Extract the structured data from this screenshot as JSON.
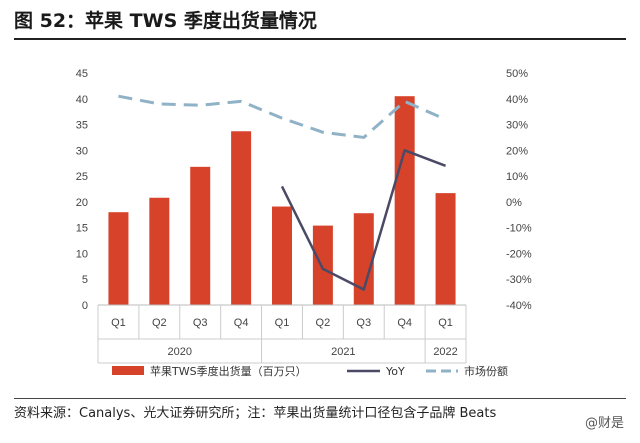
{
  "title": "图 52：苹果 TWS 季度出货量情况",
  "source": "资料来源：Canalys、光大证券研究所；注：苹果出货量统计口径包含子品牌 Beats",
  "watermark": "@财是",
  "chart_data": {
    "type": "bar",
    "categories": [
      "Q1",
      "Q2",
      "Q3",
      "Q4",
      "Q1",
      "Q2",
      "Q3",
      "Q4",
      "Q1"
    ],
    "groups": [
      {
        "label": "2020",
        "span": [
          0,
          3
        ]
      },
      {
        "label": "2021",
        "span": [
          4,
          7
        ]
      },
      {
        "label": "2022",
        "span": [
          8,
          8
        ]
      }
    ],
    "series": [
      {
        "name": "苹果TWS季度出货量（百万只）",
        "kind": "bar",
        "axis": "left",
        "color": "#d6432a",
        "values": [
          18,
          20.8,
          26.8,
          33.7,
          19.1,
          15.4,
          17.8,
          40.5,
          21.7
        ]
      },
      {
        "name": "YoY",
        "kind": "line",
        "axis": "right",
        "color": "#4a4a66",
        "values": [
          null,
          null,
          null,
          null,
          6,
          -26,
          -34,
          20,
          14
        ]
      },
      {
        "name": "市场份额",
        "kind": "dashed-line",
        "axis": "right",
        "color": "#8fb2c7",
        "values": [
          41,
          38,
          37.5,
          39,
          32.5,
          27,
          25,
          39,
          32
        ]
      }
    ],
    "y_left": {
      "min": 0,
      "max": 45,
      "step": 5
    },
    "y_right": {
      "min": -40,
      "max": 50,
      "step": 10,
      "format": "percent"
    },
    "legend": "bottom",
    "grid": false
  }
}
